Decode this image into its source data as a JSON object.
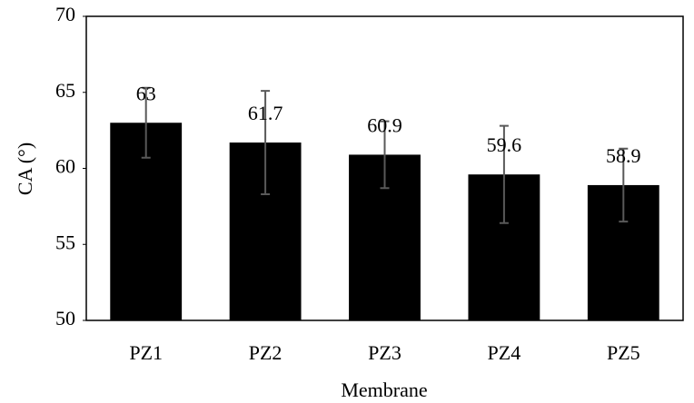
{
  "chart_data": {
    "type": "bar",
    "x_label": "Membrane",
    "y_label": "CA (°)",
    "categories": [
      "PZ1",
      "PZ2",
      "PZ3",
      "PZ4",
      "PZ5"
    ],
    "values": [
      63,
      61.7,
      60.9,
      59.6,
      58.9
    ],
    "errors": [
      2.3,
      3.4,
      2.2,
      3.2,
      2.4
    ],
    "color": "#000000",
    "error_color": "#595959",
    "ylim": [
      50,
      70
    ],
    "yticks": [
      50,
      55,
      60,
      65,
      70
    ],
    "grid": false
  }
}
